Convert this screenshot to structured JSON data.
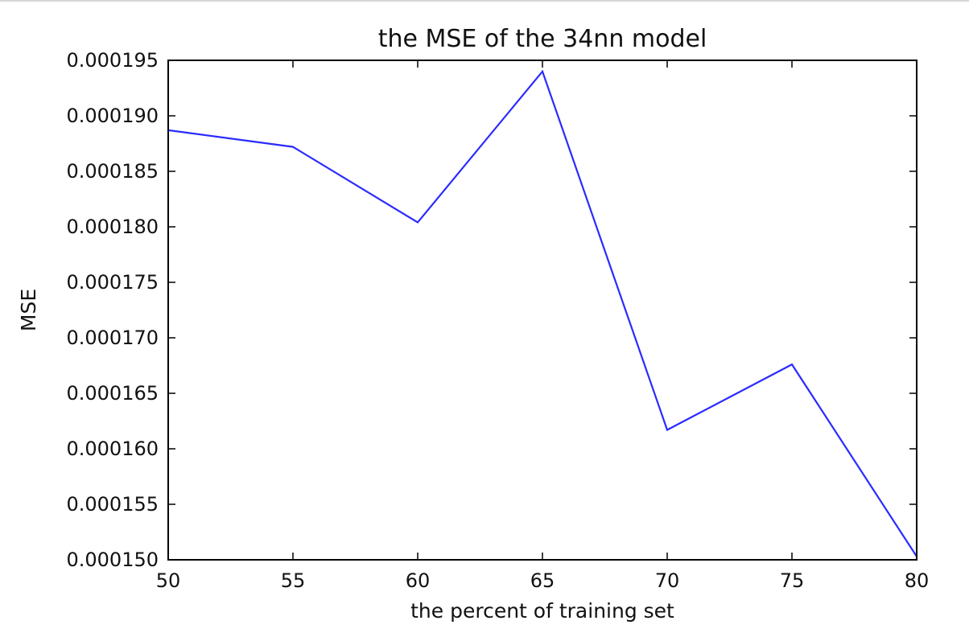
{
  "chart_data": {
    "type": "line",
    "title": "the MSE of the 34nn model",
    "xlabel": "the percent of training set",
    "ylabel": "MSE",
    "x": [
      50,
      55,
      60,
      65,
      70,
      75,
      80
    ],
    "series": [
      {
        "values": [
          0.0001887,
          0.0001872,
          0.0001804,
          0.000194,
          0.0001617,
          0.0001676,
          0.0001503
        ],
        "color": "#2b2bff"
      }
    ],
    "xlim": [
      50,
      80
    ],
    "ylim": [
      0.00015,
      0.000195
    ],
    "xticks": [
      50,
      55,
      60,
      65,
      70,
      75,
      80
    ],
    "xtick_labels": [
      "50",
      "55",
      "60",
      "65",
      "70",
      "75",
      "80"
    ],
    "yticks": [
      0.00015,
      0.000155,
      0.00016,
      0.000165,
      0.00017,
      0.000175,
      0.00018,
      0.000185,
      0.00019,
      0.000195
    ],
    "ytick_labels": [
      "0.000150",
      "0.000155",
      "0.000160",
      "0.000165",
      "0.000170",
      "0.000175",
      "0.000180",
      "0.000185",
      "0.000190",
      "0.000195"
    ],
    "grid": false,
    "legend": "none"
  }
}
